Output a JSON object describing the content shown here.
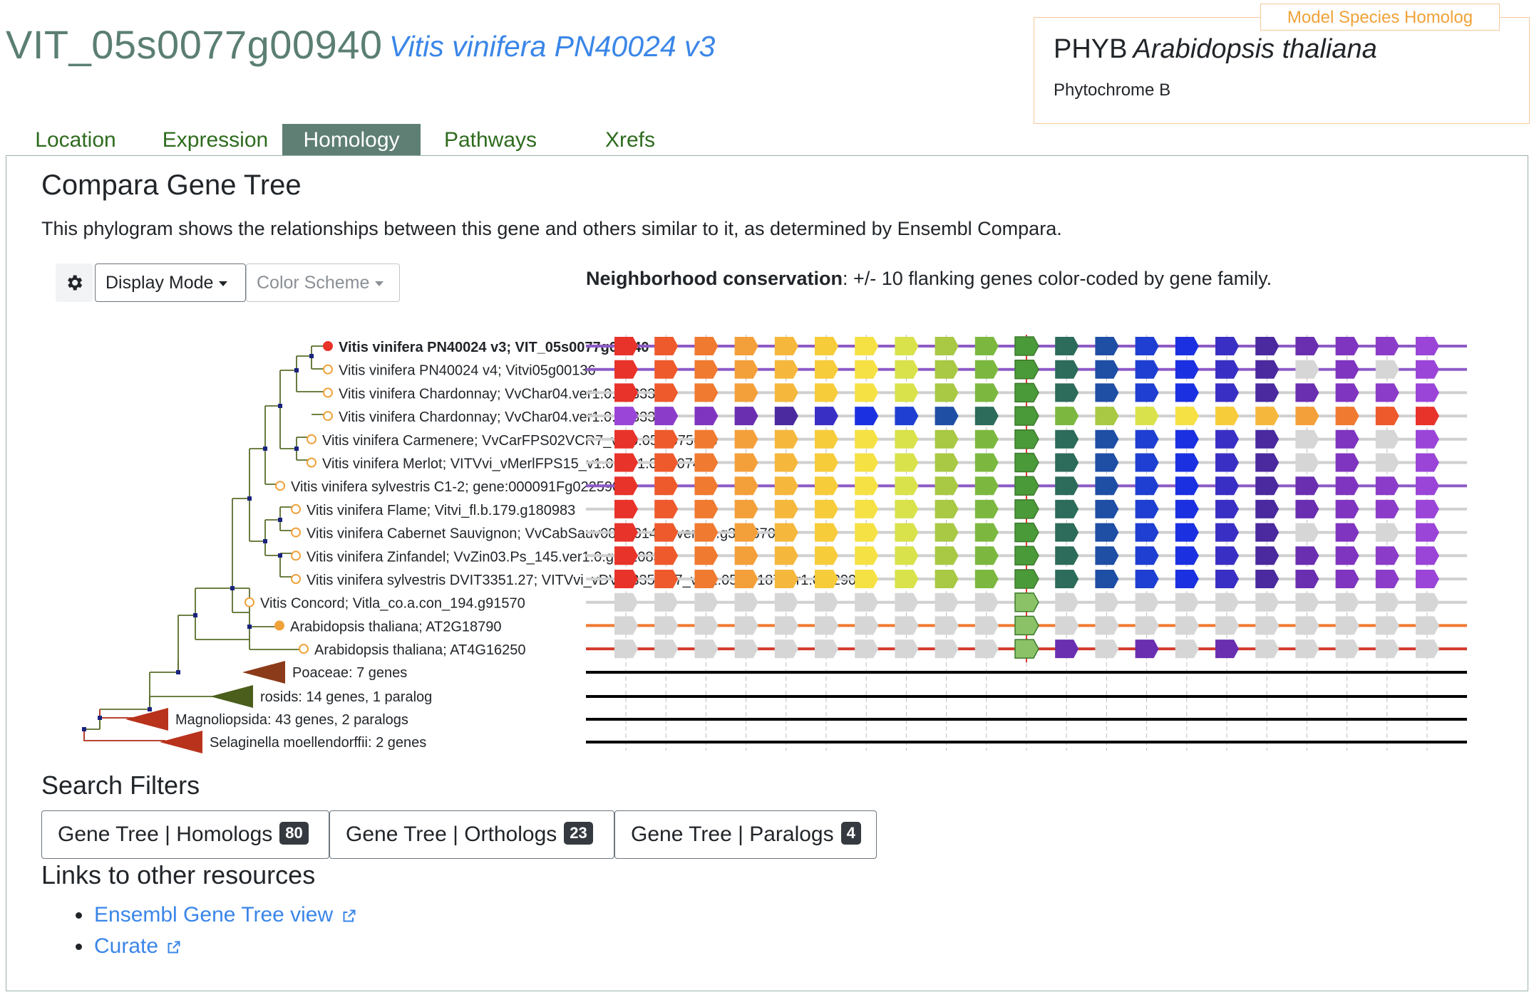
{
  "header": {
    "gene_id": "VIT_05s0077g00940",
    "species": "Vitis vinifera PN40024 v3"
  },
  "homolog": {
    "tag": "Model Species Homolog",
    "symbol": "PHYB",
    "species": "Arabidopsis thaliana",
    "description": "Phytochrome B"
  },
  "tabs": [
    {
      "label": "Location",
      "active": false
    },
    {
      "label": "Expression",
      "active": false
    },
    {
      "label": "Homology",
      "active": true
    },
    {
      "label": "Pathways",
      "active": false
    },
    {
      "label": "Xrefs",
      "active": false
    }
  ],
  "panel": {
    "title": "Compara Gene Tree",
    "description": "This phylogram shows the relationships between this gene and others similar to it, as determined by Ensembl Compara."
  },
  "toolbar": {
    "display_mode": "Display Mode",
    "color_scheme": "Color Scheme"
  },
  "neighborhood": {
    "label": "Neighborhood conservation",
    "text": ": +/- 10 flanking genes color-coded by gene family."
  },
  "tree_leaves": [
    {
      "label": "Vitis vinifera PN40024 v3; VIT_05s0077g00940",
      "bold": true,
      "marker": "#e8332a",
      "filled": true
    },
    {
      "label": "Vitis vinifera PN40024 v4; Vitvi05g00136",
      "bold": false,
      "marker": "#f0a23a",
      "filled": false
    },
    {
      "label": "Vitis vinifera Chardonnay; VvChar04.ver1.0.g333370",
      "bold": false,
      "marker": "#f0a23a",
      "filled": false
    },
    {
      "label": "Vitis vinifera Chardonnay; VvChar04.ver1.0.g333300",
      "bold": false,
      "marker": "#f0a23a",
      "filled": false
    },
    {
      "label": "Vitis vinifera Carmenere; VvCarFPS02VCR7_v1.0.05.g075668",
      "bold": false,
      "marker": "#f0a23a",
      "filled": false
    },
    {
      "label": "Vitis vinifera Merlot; VITVvi_vMerlFPS15_v1.0.ver1.0.g007420",
      "bold": false,
      "marker": "#f0a23a",
      "filled": false
    },
    {
      "label": "Vitis vinifera sylvestris C1-2; gene:000091Fg0225901",
      "bold": false,
      "marker": "#f0a23a",
      "filled": false
    },
    {
      "label": "Vitis vinifera Flame; Vitvi_fl.b.179.g180983",
      "bold": false,
      "marker": "#f0a23a",
      "filled": false
    },
    {
      "label": "Vitis vinifera Cabernet Sauvignon; VvCabSauv08_P0147F.ver1.0.g306670",
      "bold": false,
      "marker": "#f0a23a",
      "filled": false
    },
    {
      "label": "Vitis vinifera Zinfandel; VvZin03.Ps_145.ver1.0.g301083",
      "bold": false,
      "marker": "#f0a23a",
      "filled": false
    },
    {
      "label": "Vitis vinifera sylvestris DVIT3351.27; VITVvi_vDVIT3351.27_v1.1.05.g0187ver1.0.g29040",
      "bold": false,
      "marker": "#f0a23a",
      "filled": false
    },
    {
      "label": "Vitis Concord; Vitla_co.a.con_194.g91570",
      "bold": false,
      "marker": "#f0a23a",
      "filled": false
    },
    {
      "label": "Arabidopsis thaliana; AT2G18790",
      "bold": false,
      "marker": "#f0a23a",
      "filled": true
    },
    {
      "label": "Arabidopsis thaliana; AT4G16250",
      "bold": false,
      "marker": "#f0a23a",
      "filled": false
    }
  ],
  "tree_clades": [
    {
      "label": "Poaceae: 7 genes",
      "color": "#8b3a1a"
    },
    {
      "label": "rosids: 14 genes, 1 paralog",
      "color": "#4b5e1c"
    },
    {
      "label": "Magnoliopsida: 43 genes, 2 paralogs",
      "color": "#b8321c"
    },
    {
      "label": "Selaginella moellendorffii: 2 genes",
      "color": "#b8321c"
    }
  ],
  "palette": [
    "#e8332a",
    "#ee5a2c",
    "#f07a30",
    "#f4a03a",
    "#f5b83c",
    "#f7cc3a",
    "#f6e144",
    "#d9e24a",
    "#a9c843",
    "#7cb83f",
    "#4b9a3a",
    "#2d6b5a",
    "#1f4ea5",
    "#1e3fd1",
    "#1b30e0",
    "#3a2fc4",
    "#4a2a9e",
    "#6a2fb0",
    "#7f35bf",
    "#8b3cc8",
    "#9a45d8"
  ],
  "search_filters": {
    "title": "Search Filters",
    "buttons": [
      {
        "label": "Gene Tree | Homologs",
        "count": "80"
      },
      {
        "label": "Gene Tree | Orthologs",
        "count": "23"
      },
      {
        "label": "Gene Tree | Paralogs",
        "count": "4"
      }
    ]
  },
  "links": {
    "title": "Links to other resources",
    "items": [
      {
        "label": "Ensembl Gene Tree view"
      },
      {
        "label": "Curate"
      }
    ]
  }
}
